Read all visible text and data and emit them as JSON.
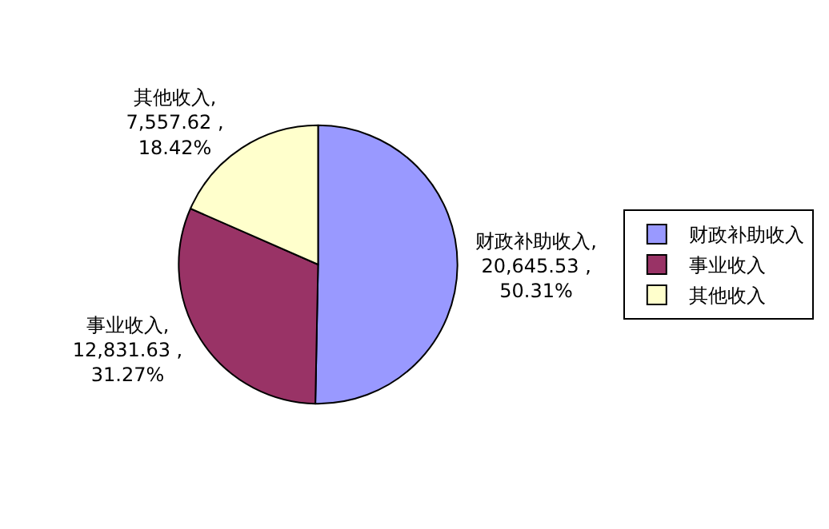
{
  "chart_data": {
    "type": "pie",
    "categories": [
      "财政补助收入",
      "事业收入",
      "其他收入"
    ],
    "values": [
      20645.53,
      12831.63,
      7557.62
    ],
    "colors": [
      "#9999ff",
      "#993366",
      "#ffffcc"
    ],
    "value_labels": [
      ",\n20,645.53 ,\n50.31%",
      ",\n12,831.63 ,\n31.27%",
      ",\n7,557.62 ,\n18.42%"
    ],
    "legend": "right"
  }
}
